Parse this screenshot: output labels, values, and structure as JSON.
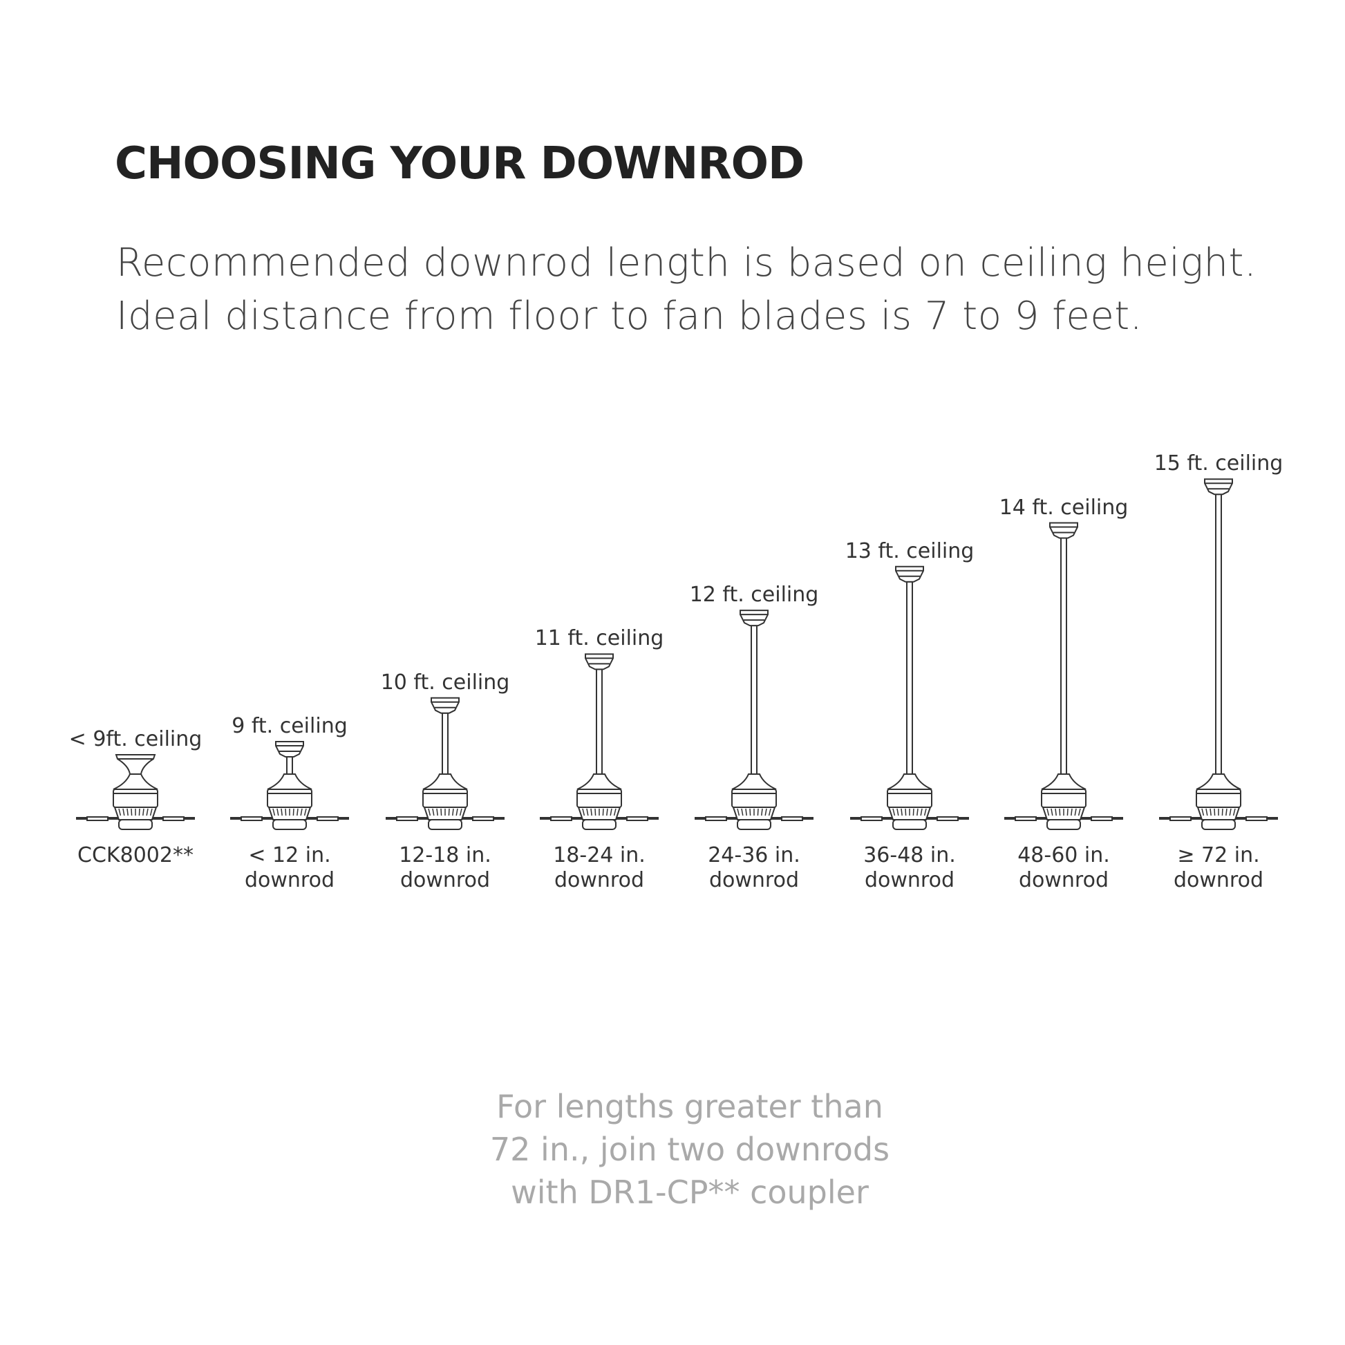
{
  "title": "CHOOSING YOUR DOWNROD",
  "subtitle": [
    "Recommended downrod length is based on ceiling height.",
    "Ideal distance from floor to fan blades is 7 to 9 feet."
  ],
  "fans": [
    {
      "ceiling": "< 9ft. ceiling",
      "mount": "close",
      "lines": [
        "CCK8002**"
      ]
    },
    {
      "ceiling": "9 ft. ceiling",
      "mount": "downrod",
      "lines": [
        "< 12 in.",
        "downrod"
      ]
    },
    {
      "ceiling": "10 ft. ceiling",
      "mount": "downrod",
      "lines": [
        "12-18 in.",
        "downrod"
      ]
    },
    {
      "ceiling": "11 ft. ceiling",
      "mount": "downrod",
      "lines": [
        "18-24 in.",
        "downrod"
      ]
    },
    {
      "ceiling": "12 ft. ceiling",
      "mount": "downrod",
      "lines": [
        "24-36 in.",
        "downrod"
      ]
    },
    {
      "ceiling": "13 ft. ceiling",
      "mount": "downrod",
      "lines": [
        "36-48 in.",
        "downrod"
      ]
    },
    {
      "ceiling": "14 ft. ceiling",
      "mount": "downrod",
      "lines": [
        "48-60 in.",
        "downrod"
      ]
    },
    {
      "ceiling": "15 ft. ceiling",
      "mount": "downrod",
      "lines": [
        "≥ 72 in.",
        "downrod"
      ]
    }
  ],
  "footer": [
    "For lengths greater than",
    "72 in., join two downrods",
    "with DR1-CP** coupler"
  ],
  "colors": {
    "line": "#333333",
    "footer_text": "#a9a9a9"
  }
}
